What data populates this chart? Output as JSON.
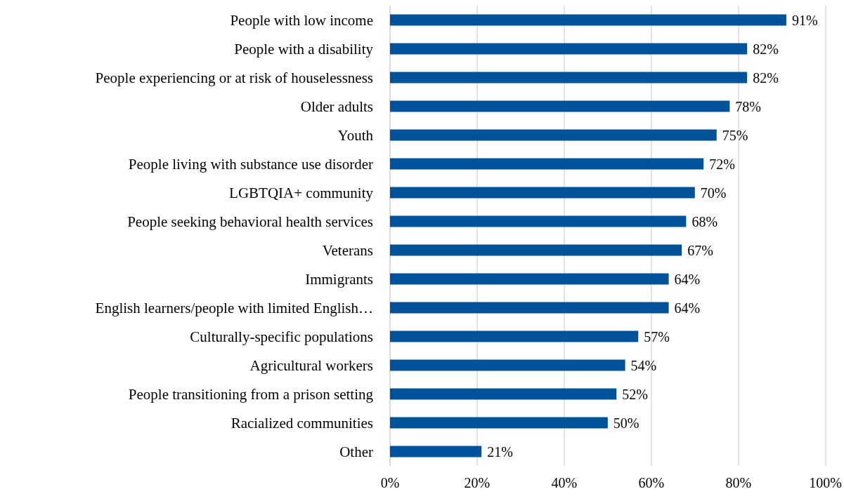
{
  "chart_data": {
    "type": "bar",
    "orientation": "horizontal",
    "categories": [
      "People with low income",
      "People with a disability",
      "People experiencing or at risk of houselessness",
      "Older adults",
      "Youth",
      "People living with substance use disorder",
      "LGBTQIA+ community",
      "People seeking behavioral health services",
      "Veterans",
      "Immigrants",
      "English learners/people with limited English…",
      "Culturally-specific populations",
      "Agricultural workers",
      "People transitioning from a prison setting",
      "Racialized communities",
      "Other"
    ],
    "values": [
      91,
      82,
      82,
      78,
      75,
      72,
      70,
      68,
      67,
      64,
      64,
      57,
      54,
      52,
      50,
      21
    ],
    "value_labels": [
      "91%",
      "82%",
      "82%",
      "78%",
      "75%",
      "72%",
      "70%",
      "68%",
      "67%",
      "64%",
      "64%",
      "57%",
      "54%",
      "52%",
      "50%",
      "21%"
    ],
    "color": "#00539b",
    "xlim": [
      0,
      100
    ],
    "xticks": [
      {
        "value": 0,
        "label": "0%"
      },
      {
        "value": 20,
        "label": "20%"
      },
      {
        "value": 40,
        "label": "40%"
      },
      {
        "value": 60,
        "label": "60%"
      },
      {
        "value": 80,
        "label": "80%"
      },
      {
        "value": 100,
        "label": "100%"
      }
    ],
    "grid": "x"
  }
}
